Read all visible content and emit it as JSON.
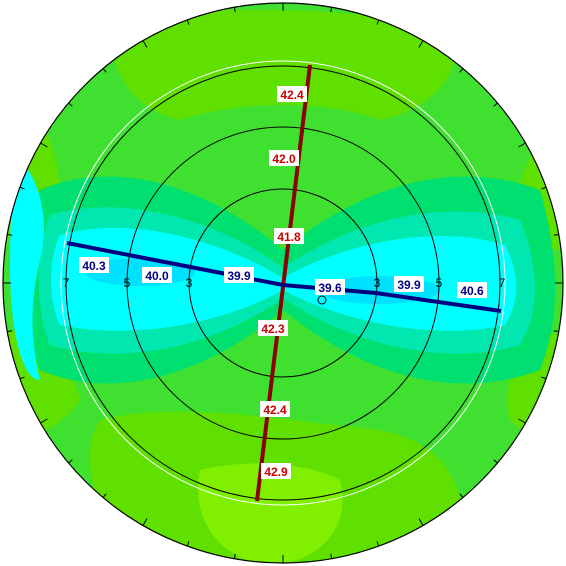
{
  "ring_labels": [
    "7",
    "5",
    "3",
    "3",
    "5",
    "7"
  ],
  "colors": {
    "deep_cyan": "#00e0ff",
    "cyan": "#00ffff",
    "aqua": "#00e8b0",
    "mint": "#00e070",
    "green": "#30e040",
    "lime": "#60e000",
    "light_lime": "#80f000",
    "steep_meridian": "#8b0000",
    "flat_meridian": "#000080",
    "steep_text": "#cc0000",
    "flat_text": "#000080"
  },
  "steep_meridian": {
    "labels": [
      "42.4",
      "42.0",
      "41.8",
      "42.3",
      "42.4",
      "42.9"
    ]
  },
  "flat_meridian": {
    "labels": [
      "40.3",
      "40.0",
      "39.9",
      "39.6",
      "39.9",
      "40.6"
    ]
  }
}
